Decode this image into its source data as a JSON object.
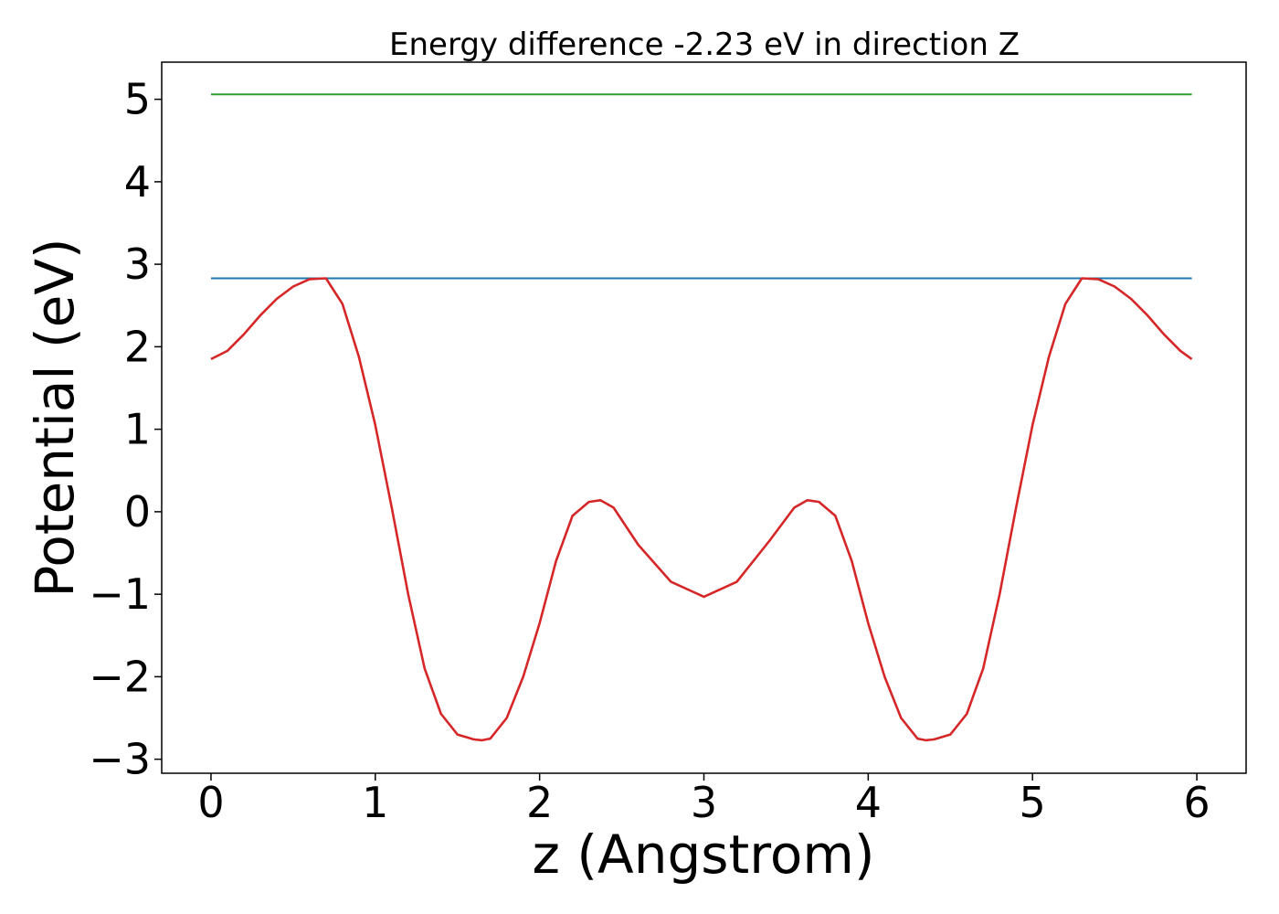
{
  "chart_data": {
    "type": "line",
    "title": "Energy difference -2.23 eV in direction Z",
    "xlabel": "z (Angstrom)",
    "ylabel": "Potential (eV)",
    "xlim": [
      -0.3,
      6.3
    ],
    "ylim": [
      -3.17,
      5.45
    ],
    "xticks": [
      0,
      1,
      2,
      3,
      4,
      5,
      6
    ],
    "xtick_labels": [
      "0",
      "1",
      "2",
      "3",
      "4",
      "5",
      "6"
    ],
    "yticks": [
      -3,
      -2,
      -1,
      0,
      1,
      2,
      3,
      4,
      5
    ],
    "ytick_labels": [
      "−3",
      "−2",
      "−1",
      "0",
      "1",
      "2",
      "3",
      "4",
      "5"
    ],
    "grid": false,
    "legend": "none",
    "series": [
      {
        "color": "#2ca02c",
        "x": [
          0,
          5.97
        ],
        "y": [
          5.06,
          5.06
        ]
      },
      {
        "color": "#1f77b4",
        "x": [
          0,
          5.97
        ],
        "y": [
          2.83,
          2.83
        ]
      },
      {
        "color": "#d62728",
        "x": [
          0,
          0.1,
          0.2,
          0.3,
          0.4,
          0.5,
          0.6,
          0.7,
          0.8,
          0.9,
          1.0,
          1.1,
          1.2,
          1.3,
          1.4,
          1.5,
          1.6,
          1.65,
          1.7,
          1.8,
          1.9,
          2.0,
          2.1,
          2.2,
          2.3,
          2.37,
          2.45,
          2.6,
          2.8,
          3.0,
          3.2,
          3.4,
          3.55,
          3.63,
          3.7,
          3.8,
          3.9,
          4.0,
          4.1,
          4.2,
          4.3,
          4.35,
          4.4,
          4.5,
          4.6,
          4.7,
          4.8,
          4.9,
          5.0,
          5.1,
          5.2,
          5.3,
          5.4,
          5.5,
          5.6,
          5.7,
          5.8,
          5.9,
          5.97
        ],
        "y": [
          1.85,
          1.95,
          2.15,
          2.38,
          2.58,
          2.73,
          2.82,
          2.83,
          2.52,
          1.88,
          1.05,
          0.05,
          -1.0,
          -1.9,
          -2.45,
          -2.7,
          -2.76,
          -2.77,
          -2.75,
          -2.5,
          -2.0,
          -1.35,
          -0.6,
          -0.05,
          0.12,
          0.14,
          0.05,
          -0.4,
          -0.85,
          -1.03,
          -0.85,
          -0.35,
          0.05,
          0.14,
          0.12,
          -0.05,
          -0.6,
          -1.35,
          -2.0,
          -2.5,
          -2.75,
          -2.77,
          -2.76,
          -2.7,
          -2.45,
          -1.9,
          -1.0,
          0.05,
          1.05,
          1.88,
          2.52,
          2.83,
          2.82,
          2.73,
          2.58,
          2.38,
          2.15,
          1.95,
          1.85
        ]
      }
    ]
  }
}
